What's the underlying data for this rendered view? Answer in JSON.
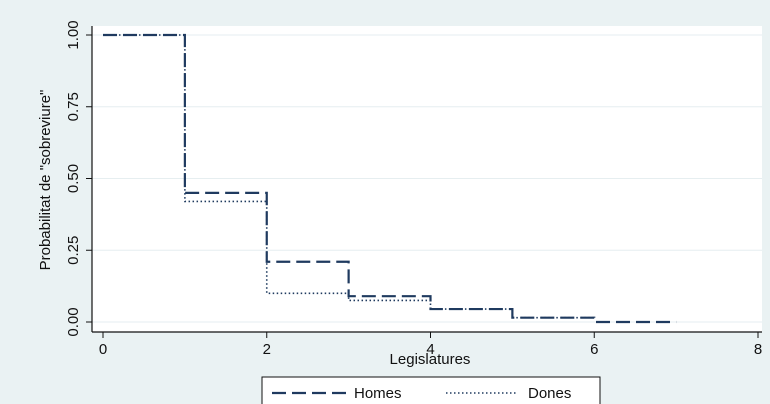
{
  "chart_data": {
    "type": "line",
    "title": "",
    "xlabel": "Legislatures",
    "ylabel": "Probabilitat de \"sobreviure\"",
    "xlim": [
      0,
      8
    ],
    "ylim": [
      0,
      1
    ],
    "x_ticks": [
      "0",
      "2",
      "4",
      "6",
      "8"
    ],
    "y_ticks": [
      "0.00",
      "0.25",
      "0.50",
      "0.75",
      "1.00"
    ],
    "grid": "horizontal",
    "legend_position": "bottom",
    "series": [
      {
        "name": "Homes",
        "style": "dashed",
        "color": "#1f3a5f",
        "points": [
          [
            0,
            1.0
          ],
          [
            1,
            1.0
          ],
          [
            1,
            0.45
          ],
          [
            2,
            0.45
          ],
          [
            2,
            0.21
          ],
          [
            3,
            0.21
          ],
          [
            3,
            0.09
          ],
          [
            4,
            0.09
          ],
          [
            4,
            0.045
          ],
          [
            5,
            0.045
          ],
          [
            5,
            0.015
          ],
          [
            6,
            0.015
          ],
          [
            6,
            0.0
          ],
          [
            7,
            0.0
          ]
        ]
      },
      {
        "name": "Dones",
        "style": "dotted",
        "color": "#1f3a5f",
        "points": [
          [
            0,
            1.0
          ],
          [
            1,
            1.0
          ],
          [
            1,
            0.42
          ],
          [
            2,
            0.42
          ],
          [
            2,
            0.1
          ],
          [
            3,
            0.1
          ],
          [
            3,
            0.075
          ],
          [
            4,
            0.075
          ],
          [
            4,
            0.045
          ],
          [
            5,
            0.045
          ],
          [
            5,
            0.015
          ],
          [
            6,
            0.015
          ]
        ]
      }
    ]
  }
}
